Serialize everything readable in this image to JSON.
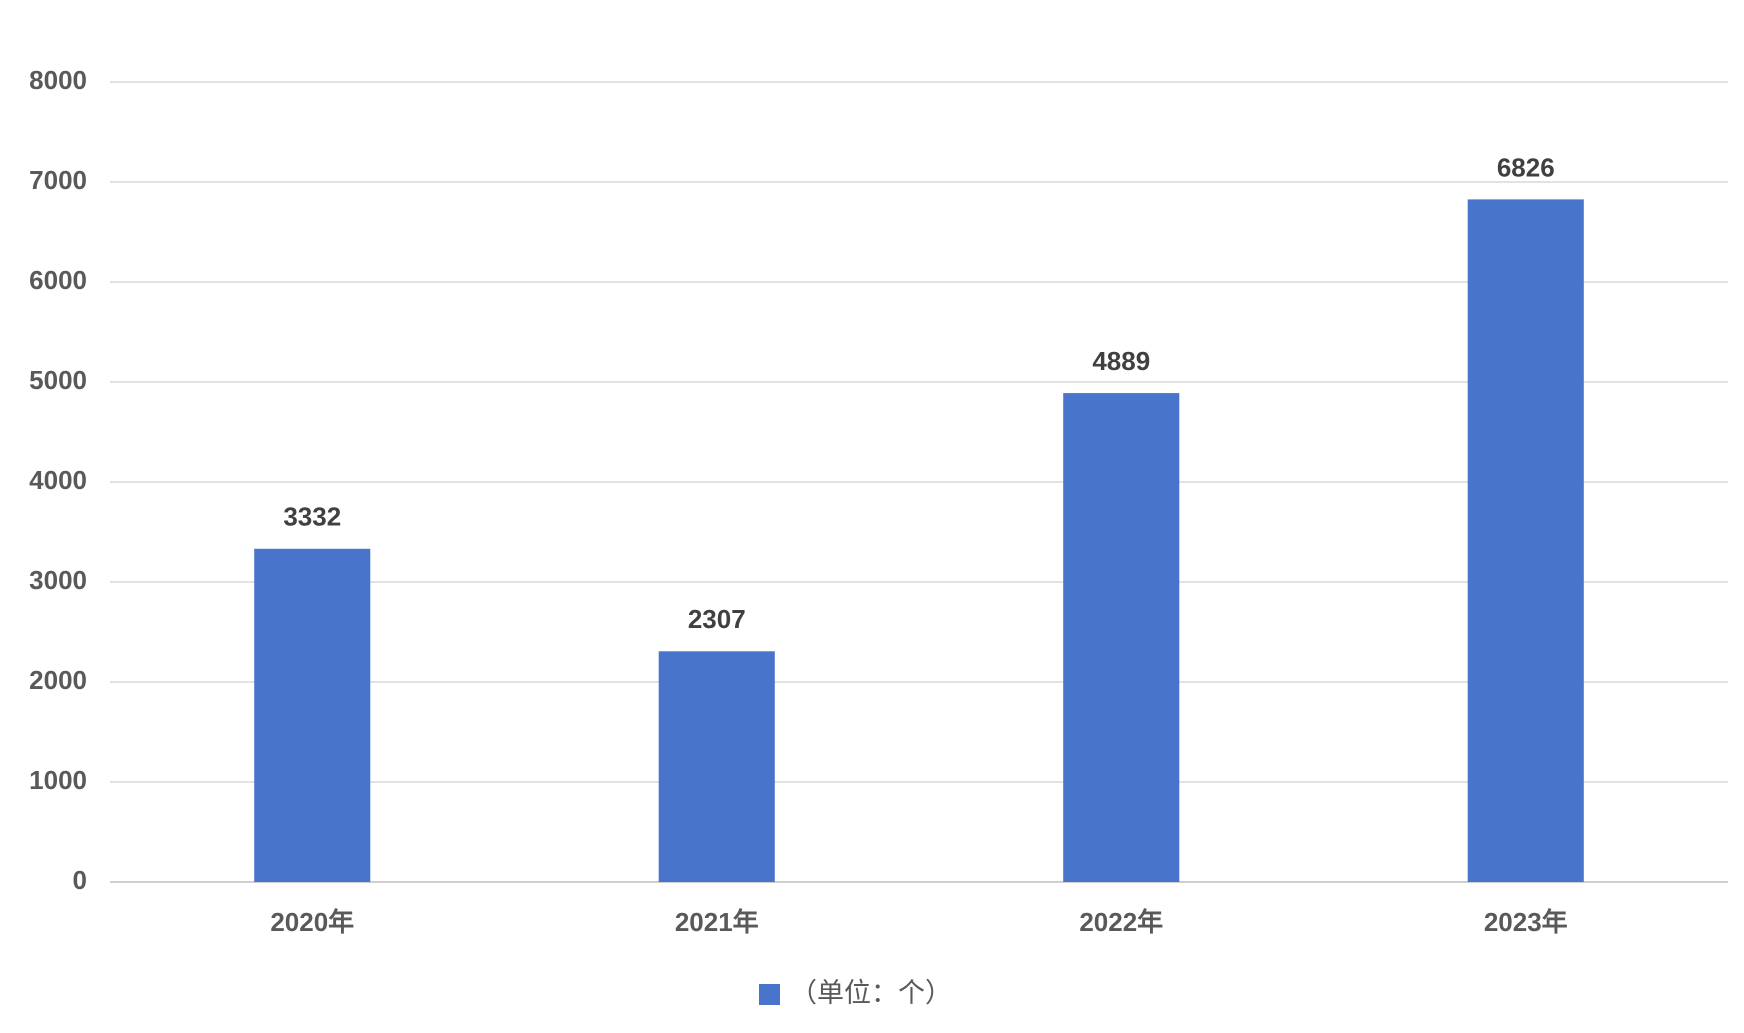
{
  "chart_data": {
    "type": "bar",
    "categories": [
      "2020年",
      "2021年",
      "2022年",
      "2023年"
    ],
    "series": [
      {
        "name": "（单位：个）",
        "color": "#4874cb",
        "values": [
          3332,
          2307,
          4889,
          6826
        ]
      }
    ],
    "ylim": [
      0,
      8000
    ],
    "yticks": [
      0,
      1000,
      2000,
      3000,
      4000,
      5000,
      6000,
      7000,
      8000
    ],
    "grid": true
  }
}
